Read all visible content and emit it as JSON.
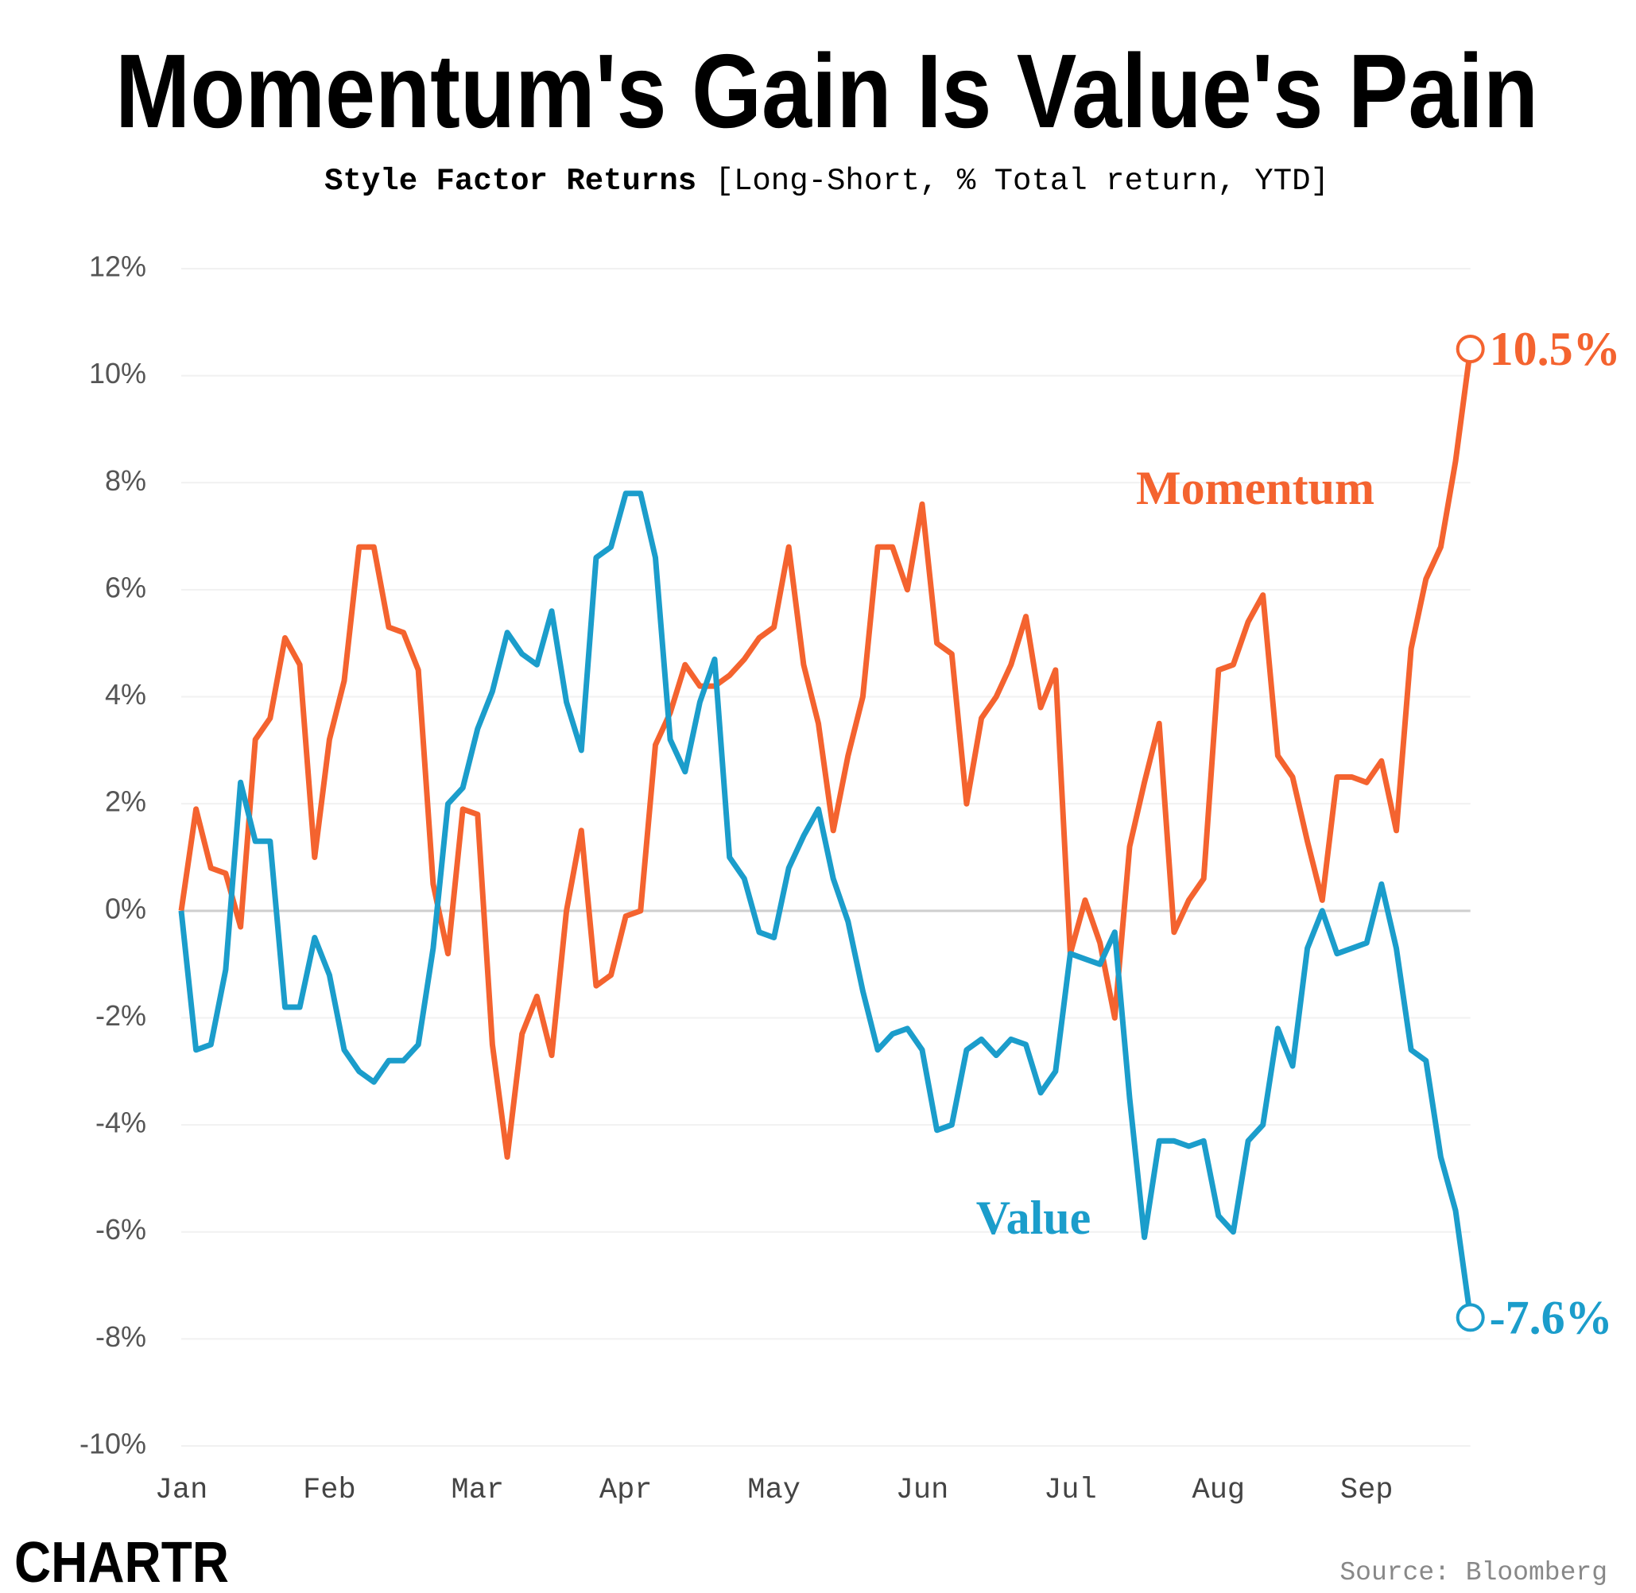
{
  "chart_data": {
    "type": "line",
    "title": "Momentum's Gain Is Value's Pain",
    "subtitle": "Style Factor Returns",
    "subtitle_note": "[Long-Short, % Total return, YTD]",
    "source": "Source: Bloomberg",
    "logo": "CHARTR",
    "categories": [
      "Jan",
      null,
      null,
      null,
      null,
      null,
      null,
      null,
      null,
      null,
      "Feb",
      null,
      null,
      null,
      null,
      null,
      null,
      null,
      null,
      null,
      "Mar",
      null,
      null,
      null,
      null,
      null,
      null,
      null,
      null,
      null,
      "Apr",
      null,
      null,
      null,
      null,
      null,
      null,
      null,
      null,
      null,
      "May",
      null,
      null,
      null,
      null,
      null,
      null,
      null,
      null,
      null,
      "Jun",
      null,
      null,
      null,
      null,
      null,
      null,
      null,
      null,
      null,
      "Jul",
      null,
      null,
      null,
      null,
      null,
      null,
      null,
      null,
      null,
      "Aug",
      null,
      null,
      null,
      null,
      null,
      null,
      null,
      null,
      null,
      "Sep",
      null,
      null,
      null,
      null,
      null,
      null,
      null
    ],
    "series": [
      {
        "name": "Momentum",
        "color": "#f4632f",
        "values": [
          0,
          1.9,
          0.8,
          0.7,
          -0.3,
          3.2,
          3.6,
          5.1,
          4.6,
          1.0,
          3.2,
          4.3,
          6.8,
          6.8,
          5.3,
          5.2,
          4.5,
          0.5,
          -0.8,
          1.9,
          1.8,
          -2.5,
          -4.6,
          -2.3,
          -1.6,
          -2.7,
          0,
          1.5,
          -1.4,
          -1.2,
          -0.1,
          0,
          3.1,
          3.7,
          4.6,
          4.2,
          4.2,
          4.4,
          4.7,
          5.1,
          5.3,
          6.8,
          4.6,
          3.5,
          1.5,
          2.9,
          4.0,
          6.8,
          6.8,
          6.0,
          7.6,
          5.0,
          4.8,
          2.0,
          3.6,
          4.0,
          4.6,
          5.5,
          3.8,
          4.5,
          -0.8,
          0.2,
          -0.6,
          -2.0,
          1.2,
          2.4,
          3.5,
          -0.4,
          0.2,
          0.6,
          4.5,
          4.6,
          5.4,
          5.9,
          2.9,
          2.5,
          1.3,
          0.2,
          2.5,
          2.5,
          2.4,
          2.8,
          1.5,
          4.9,
          6.2,
          6.8,
          8.4,
          10.5
        ],
        "value_labels": [
          null,
          null,
          null,
          null,
          null,
          null,
          null,
          null,
          null,
          null,
          null,
          null,
          null,
          null,
          null,
          null,
          null,
          null,
          null,
          null,
          null,
          null,
          null,
          null,
          null,
          null,
          null,
          null,
          null,
          null,
          null,
          null,
          null,
          null,
          null,
          null,
          null,
          null,
          null,
          null,
          null,
          null,
          null,
          null,
          null,
          null,
          null,
          null,
          null,
          null,
          null,
          null,
          null,
          null,
          null,
          null,
          null,
          null,
          null,
          null,
          null,
          null,
          null,
          null,
          null,
          null,
          null,
          null,
          null,
          null,
          null,
          null,
          null,
          null,
          null,
          null,
          null,
          null,
          null,
          null,
          null,
          null,
          null,
          null,
          null,
          null,
          null,
          "10.5%"
        ]
      },
      {
        "name": "Value",
        "color": "#1b9dcb",
        "values": [
          0,
          -2.6,
          -2.5,
          -1.1,
          2.4,
          1.3,
          1.3,
          -1.8,
          -1.8,
          -0.5,
          -1.2,
          -2.6,
          -3.0,
          -3.2,
          -2.8,
          -2.8,
          -2.5,
          -0.7,
          2.0,
          2.3,
          3.4,
          4.1,
          5.2,
          4.8,
          4.6,
          5.6,
          3.9,
          3.0,
          6.6,
          6.8,
          7.8,
          7.8,
          6.6,
          3.2,
          2.6,
          3.9,
          4.7,
          1.0,
          0.6,
          -0.4,
          -0.5,
          0.8,
          1.4,
          1.9,
          0.6,
          -0.2,
          -1.5,
          -2.6,
          -2.3,
          -2.2,
          -2.6,
          -4.1,
          -4.0,
          -2.6,
          -2.4,
          -2.7,
          -2.4,
          -2.5,
          -3.4,
          -3.0,
          -0.8,
          -0.9,
          -1.0,
          -0.4,
          -3.5,
          -6.1,
          -4.3,
          -4.3,
          -4.4,
          -4.3,
          -5.7,
          -6.0,
          -4.3,
          -4.0,
          -2.2,
          -2.9,
          -0.7,
          0,
          -0.8,
          -0.7,
          -0.6,
          0.5,
          -0.7,
          -2.6,
          -2.8,
          -4.6,
          -5.6,
          -7.6
        ],
        "value_labels": [
          null,
          null,
          null,
          null,
          null,
          null,
          null,
          null,
          null,
          null,
          null,
          null,
          null,
          null,
          null,
          null,
          null,
          null,
          null,
          null,
          null,
          null,
          null,
          null,
          null,
          null,
          null,
          null,
          null,
          null,
          null,
          null,
          null,
          null,
          null,
          null,
          null,
          null,
          null,
          null,
          null,
          null,
          null,
          null,
          null,
          null,
          null,
          null,
          null,
          null,
          null,
          null,
          null,
          null,
          null,
          null,
          null,
          null,
          null,
          null,
          null,
          null,
          null,
          null,
          null,
          null,
          null,
          null,
          null,
          null,
          null,
          null,
          null,
          null,
          null,
          null,
          null,
          null,
          null,
          null,
          null,
          null,
          null,
          null,
          null,
          null,
          null,
          "-7.6%"
        ]
      }
    ],
    "ylim": [
      -10,
      12
    ],
    "yticks": [
      {
        "value": -10,
        "label": "-10%"
      },
      {
        "value": -8,
        "label": "-8%"
      },
      {
        "value": -6,
        "label": "-6%"
      },
      {
        "value": -4,
        "label": "-4%"
      },
      {
        "value": -2,
        "label": "-2%"
      },
      {
        "value": 0,
        "label": "0%"
      },
      {
        "value": 2,
        "label": "2%"
      },
      {
        "value": 4,
        "label": "4%"
      },
      {
        "value": 6,
        "label": "6%"
      },
      {
        "value": 8,
        "label": "8%"
      },
      {
        "value": 10,
        "label": "10%"
      },
      {
        "value": 12,
        "label": "12%"
      }
    ],
    "grid": true
  }
}
